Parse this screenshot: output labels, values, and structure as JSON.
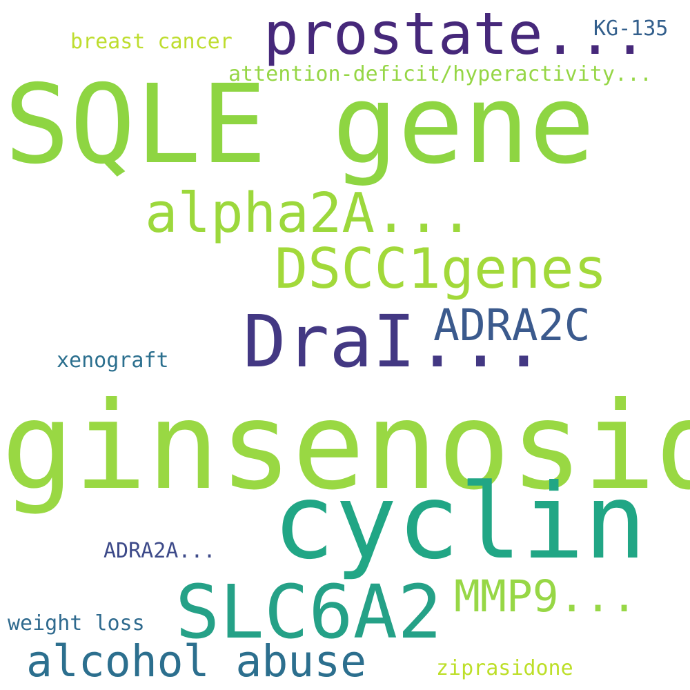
{
  "cloud": {
    "words": {
      "ginsenosides": {
        "text": "ginsenosides",
        "color": "#99d843"
      },
      "sqle": {
        "text": "SQLE gene",
        "color": "#8ed542"
      },
      "cyclin": {
        "text": "cyclin",
        "color": "#21a685"
      },
      "prostate": {
        "text": "prostate...",
        "color": "#46287a"
      },
      "drai": {
        "text": "DraI...",
        "color": "#433883"
      },
      "slc6a2": {
        "text": "SLC6A2",
        "color": "#25a187"
      },
      "alpha2a": {
        "text": "alpha2A...",
        "color": "#9cd83c"
      },
      "dscc1": {
        "text": "DSCC1genes",
        "color": "#a2d93a"
      },
      "adra2c": {
        "text": "ADRA2C",
        "color": "#3b5a8d"
      },
      "mmp9": {
        "text": "MMP9...",
        "color": "#97d746"
      },
      "alcohol_abuse": {
        "text": "alcohol abuse",
        "color": "#2c6f8e"
      },
      "attention": {
        "text": "attention-deficit/hyperactivity...",
        "color": "#95d645"
      },
      "breast_cancer": {
        "text": "breast cancer",
        "color": "#bedd2e"
      },
      "kg135": {
        "text": "KG-135",
        "color": "#335f8c"
      },
      "xenograft": {
        "text": "xenograft",
        "color": "#2b6f8e"
      },
      "adra2a": {
        "text": "ADRA2A...",
        "color": "#3d4a89"
      },
      "weight_loss": {
        "text": "weight loss",
        "color": "#2f6a8e"
      },
      "ziprasidone": {
        "text": "ziprasidone",
        "color": "#bddf29"
      }
    }
  }
}
